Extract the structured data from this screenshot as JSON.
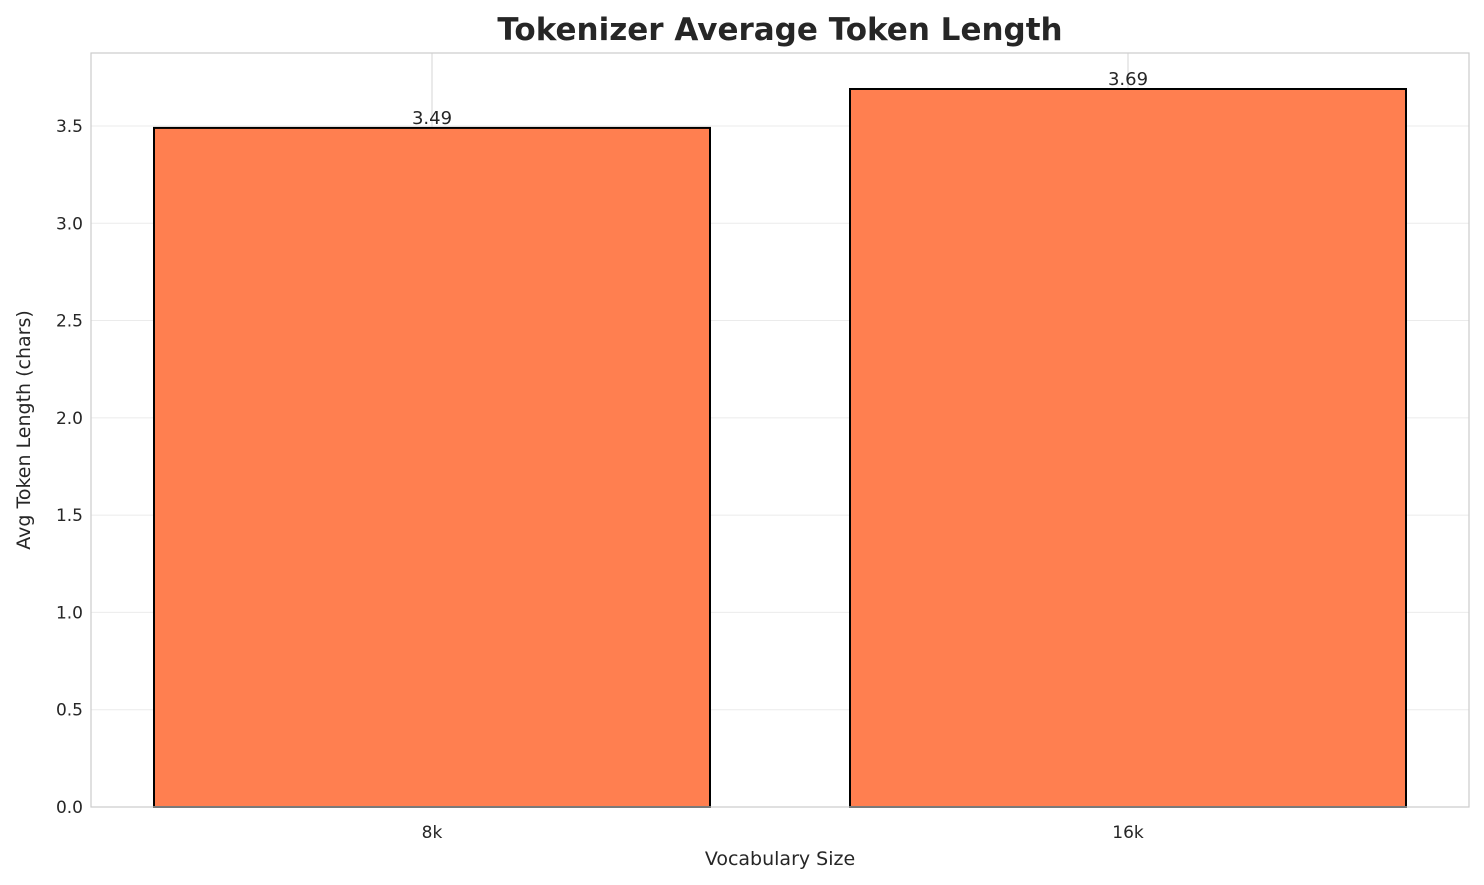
{
  "chart_data": {
    "type": "bar",
    "title": "Tokenizer Average Token Length",
    "xlabel": "Vocabulary Size",
    "ylabel": "Avg Token Length (chars)",
    "categories": [
      "8k",
      "16k"
    ],
    "values": [
      3.49,
      3.69
    ],
    "data_labels": [
      "3.49",
      "3.69"
    ],
    "ylim": [
      0,
      3.875
    ],
    "yticks": [
      0.0,
      0.5,
      1.0,
      1.5,
      2.0,
      2.5,
      3.0,
      3.5
    ],
    "ytick_labels": [
      "0.0",
      "0.5",
      "1.0",
      "1.5",
      "2.0",
      "2.5",
      "3.0",
      "3.5"
    ],
    "grid": true,
    "bar_color": "#FF7F50",
    "edge_color": "#000000"
  }
}
